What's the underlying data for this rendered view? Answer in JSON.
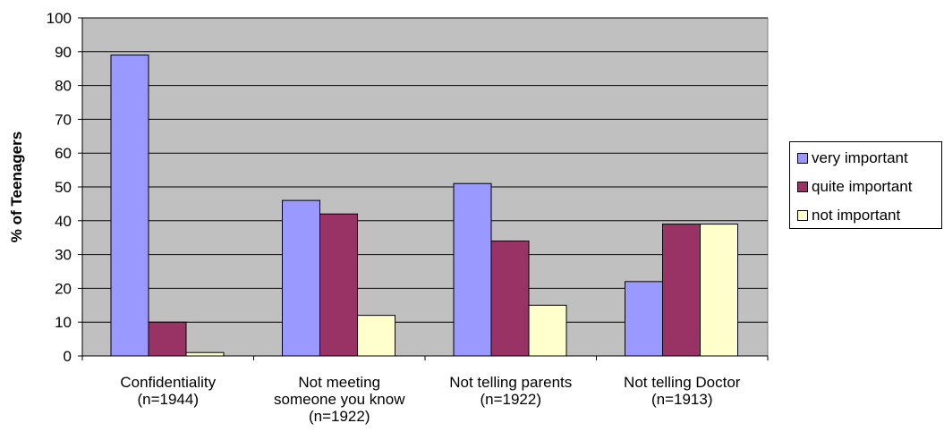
{
  "chart_data": {
    "type": "bar",
    "ylabel": "% of Teenagers",
    "ylim": [
      0,
      100
    ],
    "yticks": [
      0,
      10,
      20,
      30,
      40,
      50,
      60,
      70,
      80,
      90,
      100
    ],
    "categories": [
      [
        "Confidentiality",
        "(n=1944)"
      ],
      [
        "Not meeting",
        "someone you know",
        "(n=1922)"
      ],
      [
        "Not telling parents",
        "(n=1922)"
      ],
      [
        "Not telling Doctor",
        "(n=1913)"
      ]
    ],
    "series": [
      {
        "name": "very important",
        "color": "#9999ff",
        "values": [
          89,
          46,
          51,
          22
        ]
      },
      {
        "name": "quite important",
        "color": "#993366",
        "values": [
          10,
          42,
          34,
          39
        ]
      },
      {
        "name": "not important",
        "color": "#ffffcc",
        "values": [
          1,
          12,
          15,
          39
        ]
      }
    ],
    "plot_background": "#c0c0c0",
    "grid": true,
    "legend_position": "right"
  }
}
